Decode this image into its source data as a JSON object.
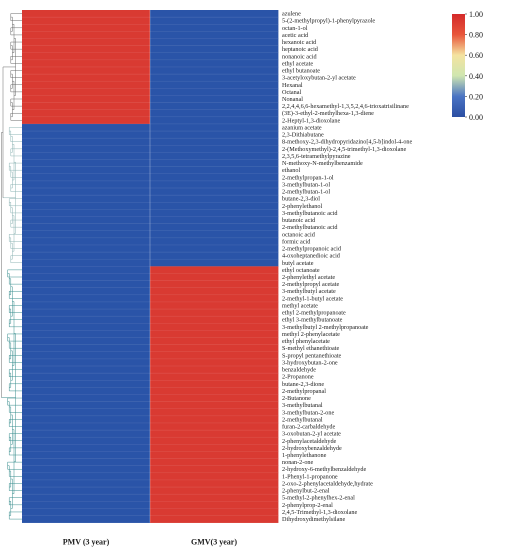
{
  "chart_data": {
    "type": "heatmap",
    "columns": [
      "PMV (3 year)",
      "GMV(3 year)"
    ],
    "rows": [
      {
        "label": "azulene",
        "values": [
          1,
          0
        ]
      },
      {
        "label": "5-(2-methylpropyl)-1-phenylpyrazole",
        "values": [
          1,
          0
        ]
      },
      {
        "label": "octan-1-ol",
        "values": [
          1,
          0
        ]
      },
      {
        "label": "acetic acid",
        "values": [
          1,
          0
        ]
      },
      {
        "label": "hexanoic acid",
        "values": [
          1,
          0
        ]
      },
      {
        "label": "heptanoic acid",
        "values": [
          1,
          0
        ]
      },
      {
        "label": "nonanoic acid",
        "values": [
          1,
          0
        ]
      },
      {
        "label": "ethyl acetate",
        "values": [
          1,
          0
        ]
      },
      {
        "label": "ethyl butanoate",
        "values": [
          1,
          0
        ]
      },
      {
        "label": "3-acetyloxybutan-2-yl acetate",
        "values": [
          1,
          0
        ]
      },
      {
        "label": "Hexanal",
        "values": [
          1,
          0
        ]
      },
      {
        "label": "Octanal",
        "values": [
          1,
          0
        ]
      },
      {
        "label": "Nonanal",
        "values": [
          1,
          0
        ]
      },
      {
        "label": "2,2,4,4,6,6-hexamethyl-1,3,5,2,4,6-trioxatrisilinane",
        "values": [
          1,
          0
        ]
      },
      {
        "label": "(3E)-3-ethyl-2-methylhexa-1,3-diene",
        "values": [
          1,
          0
        ]
      },
      {
        "label": "2-Heptyl-1,3-dioxolane",
        "values": [
          1,
          0
        ]
      },
      {
        "label": "azanium acetate",
        "values": [
          0,
          0
        ]
      },
      {
        "label": "2,3-Dithiabutane",
        "values": [
          0,
          0
        ]
      },
      {
        "label": "8-methoxy-2,3-dihydropyridazino[4,5-b]indol-4-one",
        "values": [
          0,
          0
        ]
      },
      {
        "label": "2-(Methoxymethyl)-2,4,5-trimethyl-1,3-dioxolane",
        "values": [
          0,
          0
        ]
      },
      {
        "label": "2,3,5,6-tetramethylpyrazine",
        "values": [
          0,
          0
        ]
      },
      {
        "label": "N-methoxy-N-methylbenzamide",
        "values": [
          0,
          0
        ]
      },
      {
        "label": "ethanol",
        "values": [
          0,
          0
        ]
      },
      {
        "label": "2-methylpropan-1-ol",
        "values": [
          0,
          0
        ]
      },
      {
        "label": "3-methylbutan-1-ol",
        "values": [
          0,
          0
        ]
      },
      {
        "label": "2-methylbutan-1-ol",
        "values": [
          0,
          0
        ]
      },
      {
        "label": "butane-2,3-diol",
        "values": [
          0,
          0
        ]
      },
      {
        "label": "2-phenylethanol",
        "values": [
          0,
          0
        ]
      },
      {
        "label": "3-methylbutanoic acid",
        "values": [
          0,
          0
        ]
      },
      {
        "label": "butanoic acid",
        "values": [
          0,
          0
        ]
      },
      {
        "label": "2-methylbutanoic acid",
        "values": [
          0,
          0
        ]
      },
      {
        "label": "octanoic acid",
        "values": [
          0,
          0
        ]
      },
      {
        "label": "formic acid",
        "values": [
          0,
          0
        ]
      },
      {
        "label": "2-methylpropanoic acid",
        "values": [
          0,
          0
        ]
      },
      {
        "label": "4-oxoheptanedioic acid",
        "values": [
          0,
          0
        ]
      },
      {
        "label": "butyl acetate",
        "values": [
          0,
          0
        ]
      },
      {
        "label": "ethyl octanoate",
        "values": [
          0,
          1
        ]
      },
      {
        "label": "2-phenylethyl acetate",
        "values": [
          0,
          1
        ]
      },
      {
        "label": "2-methylpropyl acetate",
        "values": [
          0,
          1
        ]
      },
      {
        "label": "3-methylbutyl acetate",
        "values": [
          0,
          1
        ]
      },
      {
        "label": "2-methyl-1-butyl acetate",
        "values": [
          0,
          1
        ]
      },
      {
        "label": "methyl acetate",
        "values": [
          0,
          1
        ]
      },
      {
        "label": "ethyl 2-methylpropanoate",
        "values": [
          0,
          1
        ]
      },
      {
        "label": "ethyl 3-methylbutanoate",
        "values": [
          0,
          1
        ]
      },
      {
        "label": "3-methylbutyl 2-methylpropanoate",
        "values": [
          0,
          1
        ]
      },
      {
        "label": "methyl 2-phenylacetate",
        "values": [
          0,
          1
        ]
      },
      {
        "label": "ethyl phenylacetate",
        "values": [
          0,
          1
        ]
      },
      {
        "label": "S-methyl ethanethioate",
        "values": [
          0,
          1
        ]
      },
      {
        "label": "S-propyl pentanethioate",
        "values": [
          0,
          1
        ]
      },
      {
        "label": "3-hydroxybutan-2-one",
        "values": [
          0,
          1
        ]
      },
      {
        "label": "benzaldehyde",
        "values": [
          0,
          1
        ]
      },
      {
        "label": "2-Propanone",
        "values": [
          0,
          1
        ]
      },
      {
        "label": "butane-2,3-dione",
        "values": [
          0,
          1
        ]
      },
      {
        "label": "2-methylpropanal",
        "values": [
          0,
          1
        ]
      },
      {
        "label": "2-Butanone",
        "values": [
          0,
          1
        ]
      },
      {
        "label": "3-methylbutanal",
        "values": [
          0,
          1
        ]
      },
      {
        "label": "3-methylbutan-2-one",
        "values": [
          0,
          1
        ]
      },
      {
        "label": "2-methylbutanal",
        "values": [
          0,
          1
        ]
      },
      {
        "label": "furan-2-carbaldehyde",
        "values": [
          0,
          1
        ]
      },
      {
        "label": "3-oxobutan-2-yl acetate",
        "values": [
          0,
          1
        ]
      },
      {
        "label": "2-phenylacetaldehyde",
        "values": [
          0,
          1
        ]
      },
      {
        "label": "2-hydroxybenzaldehyde",
        "values": [
          0,
          1
        ]
      },
      {
        "label": "1-phenylethanone",
        "values": [
          0,
          1
        ]
      },
      {
        "label": "nonan-2-one",
        "values": [
          0,
          1
        ]
      },
      {
        "label": "2-hydroxy-6-methylbenzaldehyde",
        "values": [
          0,
          1
        ]
      },
      {
        "label": "1-Phenyl-1-propanone",
        "values": [
          0,
          1
        ]
      },
      {
        "label": "2-oxo-2-phenylacetaldehyde,hydrate",
        "values": [
          0,
          1
        ]
      },
      {
        "label": "2-phenylbut-2-enal",
        "values": [
          0,
          1
        ]
      },
      {
        "label": "5-methyl-2-phenylhex-2-enal",
        "values": [
          0,
          1
        ]
      },
      {
        "label": "2-phenylprop-2-enal",
        "values": [
          0,
          1
        ]
      },
      {
        "label": "2,4,5-Trimethyl-1,3-dioxolane",
        "values": [
          0,
          1
        ]
      },
      {
        "label": "Dihydroxydimethylsilane",
        "values": [
          0,
          1
        ]
      }
    ],
    "colorbar": {
      "min": 0.0,
      "max": 1.0,
      "ticks": [
        "1.00",
        "0.80",
        "0.60",
        "0.40",
        "0.20",
        "0.00"
      ],
      "colors": [
        "#2b4ea2",
        "#4a74c4",
        "#cfe6b0",
        "#f4e3a0",
        "#e8563b",
        "#d42a2a"
      ]
    },
    "cell_colors": {
      "low": "#2a54a8",
      "high": "#d93a32"
    },
    "dendrogram_colors": [
      "#6a6a6a",
      "#3a8f8f",
      "#8fb5b5"
    ]
  }
}
